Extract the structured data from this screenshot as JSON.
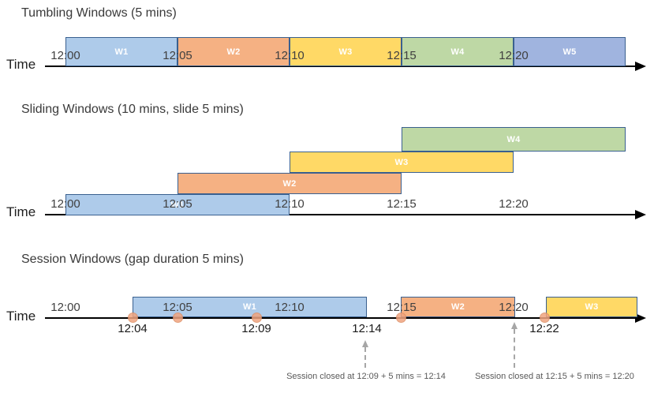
{
  "colors": {
    "blue": "#AECBEA",
    "orange": "#F5B183",
    "yellow": "#FFD966",
    "green": "#BED8A5",
    "periwinkle": "#A0B4DF",
    "bar_border": "#3A608F",
    "dot_fill": "#F0A47F",
    "dot_border": "#DE8E63",
    "axis": "#000000",
    "tick_text": "#404040",
    "event_text": "#1a1a1a",
    "title_text": "#3a3a3a",
    "annotation": "#595959",
    "arrow_grey": "#A6A6A6",
    "bar_label": "#ffffff"
  },
  "sections": [
    {
      "title": "Tumbling Windows (5 mins)",
      "axis_label": "Time",
      "ticks": [
        "12:00",
        "12:05",
        "12:10",
        "12:15",
        "12:20"
      ],
      "windows": [
        {
          "label": "W1",
          "color": "blue",
          "start": "12:00",
          "end": "12:05"
        },
        {
          "label": "W2",
          "color": "orange",
          "start": "12:05",
          "end": "12:10"
        },
        {
          "label": "W3",
          "color": "yellow",
          "start": "12:10",
          "end": "12:15"
        },
        {
          "label": "W4",
          "color": "green",
          "start": "12:15",
          "end": "12:20"
        },
        {
          "label": "W5",
          "color": "periwinkle",
          "start": "12:20",
          "end": ""
        }
      ]
    },
    {
      "title": "Sliding Windows (10 mins, slide 5 mins)",
      "axis_label": "Time",
      "ticks": [
        "12:00",
        "12:05",
        "12:10",
        "12:15",
        "12:20"
      ],
      "windows": [
        {
          "label": "W1",
          "color": "blue",
          "start": "12:00",
          "end": "12:10"
        },
        {
          "label": "W2",
          "color": "orange",
          "start": "12:05",
          "end": "12:15"
        },
        {
          "label": "W3",
          "color": "yellow",
          "start": "12:10",
          "end": "12:20"
        },
        {
          "label": "W4",
          "color": "green",
          "start": "12:15",
          "end": ""
        }
      ]
    },
    {
      "title": "Session Windows (gap duration 5 mins)",
      "axis_label": "Time",
      "ticks": [
        "12:00",
        "12:05",
        "12:10",
        "12:15",
        "12:20"
      ],
      "windows": [
        {
          "label": "W1",
          "color": "blue"
        },
        {
          "label": "W2",
          "color": "orange"
        },
        {
          "label": "W3",
          "color": "yellow"
        }
      ],
      "event_labels": [
        "12:04",
        "12:09",
        "12:14",
        "12:22"
      ],
      "annotations": [
        "Session closed at 12:09 + 5 mins = 12:14",
        "Session closed at 12:15 + 5 mins = 12:20"
      ]
    }
  ]
}
